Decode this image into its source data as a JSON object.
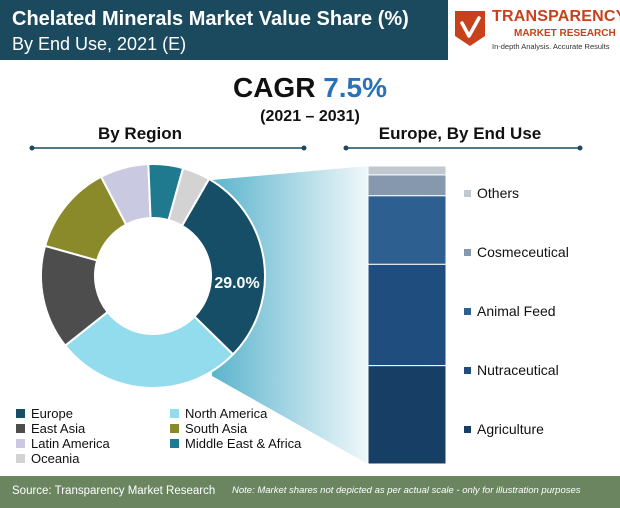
{
  "header": {
    "title_line1": "Chelated Minerals Market Value Share (%)",
    "title_line2": "By End Use, 2021 (E)"
  },
  "logo": {
    "name": "TRANSPARENCY",
    "sub": "MARKET RESEARCH",
    "tagline": "In-depth Analysis. Accurate Results"
  },
  "cagr": {
    "label": "CAGR",
    "value": "7.5%",
    "period": "(2021 – 2031)"
  },
  "sections": {
    "region_title": "By Region",
    "europe_title": "Europe, By End Use"
  },
  "colors": {
    "header_bg": "#1b4a5e",
    "footer_bg": "#6a8560",
    "accent_blue": "#2a72b8",
    "brand_orange": "#c8411b"
  },
  "chart_data": [
    {
      "type": "pie",
      "title": "By Region",
      "donut": true,
      "label": "29.0%",
      "slices": [
        {
          "name": "Europe",
          "value": 29.0,
          "color": "#154e66"
        },
        {
          "name": "North America",
          "value": 27.0,
          "color": "#93dced"
        },
        {
          "name": "East Asia",
          "value": 15.0,
          "color": "#4d4d4d"
        },
        {
          "name": "South Asia",
          "value": 13.0,
          "color": "#8a8a2a"
        },
        {
          "name": "Latin America",
          "value": 7.0,
          "color": "#c9c9e2"
        },
        {
          "name": "Middle East & Africa",
          "value": 5.0,
          "color": "#1f7a90"
        },
        {
          "name": "Oceania",
          "value": 4.0,
          "color": "#d3d3d3"
        }
      ]
    },
    {
      "type": "bar",
      "stacked": true,
      "title": "Europe, By End Use",
      "categories": [
        "Others",
        "Cosmeceutical",
        "Animal Feed",
        "Nutraceutical",
        "Agriculture"
      ],
      "values": [
        3,
        7,
        23,
        34,
        33
      ],
      "colors": [
        "#c2c8d0",
        "#8598ae",
        "#2d6090",
        "#1e4d7e",
        "#173f66"
      ]
    }
  ],
  "footer": {
    "source": "Source: Transparency Market Research",
    "note": "Note: Market shares not depicted as per actual scale - only for illustration purposes"
  }
}
